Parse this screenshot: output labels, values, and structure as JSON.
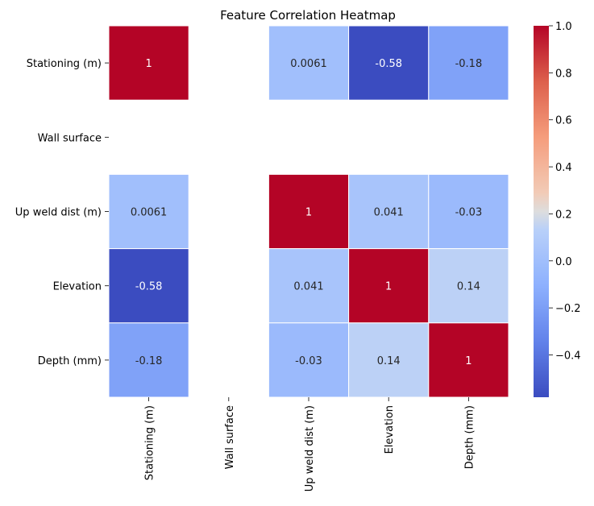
{
  "chart_data": {
    "type": "heatmap",
    "title": "Feature Correlation Heatmap",
    "rows": [
      "Stationing (m)",
      "Wall surface",
      "Up weld dist (m)",
      "Elevation",
      "Depth (mm)"
    ],
    "columns": [
      "Stationing (m)",
      "Wall surface",
      "Up weld dist (m)",
      "Elevation",
      "Depth (mm)"
    ],
    "values": [
      [
        1,
        null,
        0.0061,
        -0.58,
        -0.18
      ],
      [
        null,
        null,
        null,
        null,
        null
      ],
      [
        0.0061,
        null,
        1,
        0.041,
        -0.03
      ],
      [
        -0.58,
        null,
        0.041,
        1,
        0.14
      ],
      [
        -0.18,
        null,
        -0.03,
        0.14,
        1
      ]
    ],
    "value_labels": [
      [
        "1",
        "",
        "0.0061",
        "-0.58",
        "-0.18"
      ],
      [
        "",
        "",
        "",
        "",
        ""
      ],
      [
        "0.0061",
        "",
        "1",
        "0.041",
        "-0.03"
      ],
      [
        "-0.58",
        "",
        "0.041",
        "1",
        "0.14"
      ],
      [
        "-0.18",
        "",
        "-0.03",
        "0.14",
        "1"
      ]
    ],
    "colormap": "coolwarm",
    "colorbar": {
      "range": [
        -0.58,
        1.0
      ],
      "ticks": [
        1.0,
        0.8,
        0.6,
        0.4,
        0.2,
        0.0,
        -0.2,
        -0.4
      ],
      "tick_labels": [
        "1.0",
        "0.8",
        "0.6",
        "0.4",
        "0.2",
        "0.0",
        "−0.2",
        "−0.4"
      ]
    },
    "grid_lines_color": "#ffffff",
    "label_colors": {
      "dark_cell": "#ffffff",
      "light_cell": "#262626"
    }
  }
}
